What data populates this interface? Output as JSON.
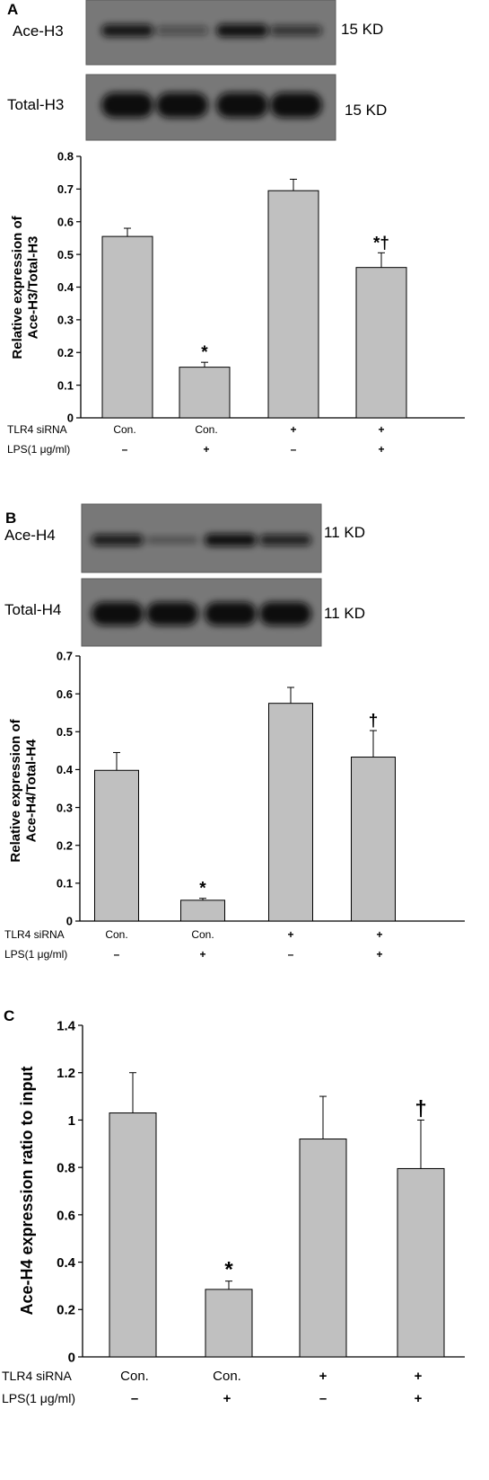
{
  "panels": [
    {
      "letter": "A",
      "blots": [
        {
          "label": "Ace-H3",
          "size": "15 KD",
          "bands": [
            0.85,
            0.3,
            0.9,
            0.55
          ]
        },
        {
          "label": "Total-H3",
          "size": "15 KD",
          "bands": [
            1.0,
            1.0,
            1.0,
            1.0
          ]
        }
      ],
      "row_labels": [
        "TLR4 siRNA",
        "LPS(1 μg/ml)"
      ],
      "conditions": [
        {
          "siRNA": "Con.",
          "lps": "–"
        },
        {
          "siRNA": "Con.",
          "lps": "+"
        },
        {
          "siRNA": "+",
          "lps": "–"
        },
        {
          "siRNA": "+",
          "lps": "+"
        }
      ]
    },
    {
      "letter": "B",
      "blots": [
        {
          "label": "Ace-H4",
          "size": "11 KD",
          "bands": [
            0.8,
            0.15,
            0.95,
            0.75
          ]
        },
        {
          "label": "Total-H4",
          "size": "11 KD",
          "bands": [
            1.0,
            1.0,
            1.0,
            1.0
          ]
        }
      ],
      "row_labels": [
        "TLR4 siRNA",
        "LPS(1 μg/ml)"
      ],
      "conditions": [
        {
          "siRNA": "Con.",
          "lps": "–"
        },
        {
          "siRNA": "Con.",
          "lps": "+"
        },
        {
          "siRNA": "+",
          "lps": "–"
        },
        {
          "siRNA": "+",
          "lps": "+"
        }
      ]
    },
    {
      "letter": "C",
      "blots": [],
      "row_labels": [
        "TLR4 siRNA",
        "LPS(1 μg/ml)"
      ],
      "conditions": [
        {
          "siRNA": "Con.",
          "lps": "–"
        },
        {
          "siRNA": "Con.",
          "lps": "+"
        },
        {
          "siRNA": "+",
          "lps": "–"
        },
        {
          "siRNA": "+",
          "lps": "+"
        }
      ]
    }
  ],
  "chart_data": [
    {
      "type": "bar",
      "title": "",
      "ylabel": "Relative expression of Ace-H3/Total-H3",
      "ylabel_lines": [
        "Relative expression of",
        "Ace-H3/Total-H3"
      ],
      "ylim": [
        0,
        0.8
      ],
      "yticks": [
        0,
        0.1,
        0.2,
        0.3,
        0.4,
        0.5,
        0.6,
        0.7,
        0.8
      ],
      "ytick_labels": [
        "0",
        "0.1",
        "0.2",
        "0.3",
        "0.4",
        "0.5",
        "0.6",
        "0.7",
        "0.8"
      ],
      "values": [
        0.555,
        0.155,
        0.695,
        0.46
      ],
      "errors": [
        0.025,
        0.015,
        0.035,
        0.045
      ],
      "annotations": [
        "",
        "*",
        "",
        "*†"
      ],
      "bar_color": "#c0c0c0"
    },
    {
      "type": "bar",
      "title": "",
      "ylabel": "Relative expression of Ace-H4/Total-H4",
      "ylabel_lines": [
        "Relative expression of",
        "Ace-H4/Total-H4"
      ],
      "ylim": [
        0,
        0.7
      ],
      "yticks": [
        0,
        0.1,
        0.2,
        0.3,
        0.4,
        0.5,
        0.6,
        0.7
      ],
      "ytick_labels": [
        "0",
        "0.1",
        "0.2",
        "0.3",
        "0.4",
        "0.5",
        "0.6",
        "0.7"
      ],
      "values": [
        0.398,
        0.055,
        0.575,
        0.433
      ],
      "errors": [
        0.047,
        0.005,
        0.042,
        0.07
      ],
      "annotations": [
        "",
        "*",
        "",
        "†"
      ],
      "bar_color": "#c0c0c0"
    },
    {
      "type": "bar",
      "title": "",
      "ylabel": "Ace-H4 expression ratio to input",
      "ylabel_lines": [
        "Ace-H4 expression ratio to input"
      ],
      "ylim": [
        0,
        1.4
      ],
      "yticks": [
        0,
        0.2,
        0.4,
        0.6,
        0.8,
        1,
        1.2,
        1.4
      ],
      "ytick_labels": [
        "0",
        "0.2",
        "0.4",
        "0.6",
        "0.8",
        "1",
        "1.2",
        "1.4"
      ],
      "values": [
        1.03,
        0.285,
        0.92,
        0.795
      ],
      "errors": [
        0.17,
        0.035,
        0.18,
        0.205
      ],
      "annotations": [
        "",
        "*",
        "",
        "†"
      ],
      "bar_color": "#c0c0c0"
    }
  ]
}
